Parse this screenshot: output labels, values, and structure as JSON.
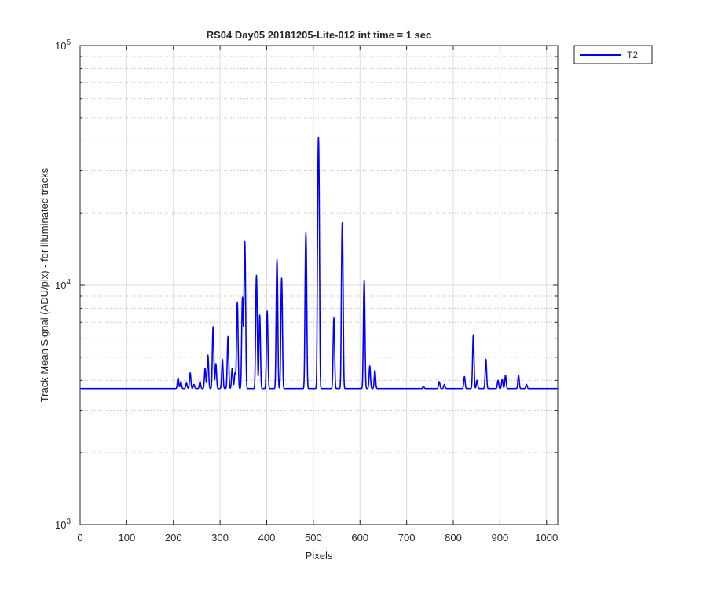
{
  "chart_data": {
    "type": "line",
    "title": "RS04 Day05 20181205-Lite-012 int time = 1 sec",
    "xlabel": "Pixels",
    "ylabel": "Track Mean Signal (ADU/pix) - for illuminated tracks",
    "xlim": [
      0,
      1024
    ],
    "ylim": [
      1000,
      100000
    ],
    "yscale": "log",
    "grid": true,
    "minor_grid_y": true,
    "legend_position": "outside-top-right",
    "x_ticks": [
      0,
      100,
      200,
      300,
      400,
      500,
      600,
      700,
      800,
      900,
      1000
    ],
    "x_tick_labels": [
      "0",
      "100",
      "200",
      "300",
      "400",
      "500",
      "600",
      "700",
      "800",
      "900",
      "1000"
    ],
    "y_ticks": [
      1000,
      10000,
      100000
    ],
    "y_tick_labels": [
      {
        "base": "10",
        "exp": "3"
      },
      {
        "base": "10",
        "exp": "4"
      },
      {
        "base": "10",
        "exp": "5"
      }
    ],
    "baseline": 3700,
    "series": [
      {
        "name": "T2",
        "color": "#0000ff",
        "peaks": [
          {
            "x": 210,
            "y": 4100
          },
          {
            "x": 216,
            "y": 3950
          },
          {
            "x": 228,
            "y": 3900
          },
          {
            "x": 236,
            "y": 4300
          },
          {
            "x": 244,
            "y": 3850
          },
          {
            "x": 257,
            "y": 3950
          },
          {
            "x": 268,
            "y": 4500
          },
          {
            "x": 274,
            "y": 5100
          },
          {
            "x": 285,
            "y": 6700
          },
          {
            "x": 291,
            "y": 4700
          },
          {
            "x": 305,
            "y": 4900
          },
          {
            "x": 317,
            "y": 6100
          },
          {
            "x": 326,
            "y": 4500
          },
          {
            "x": 332,
            "y": 4300
          },
          {
            "x": 337,
            "y": 8500
          },
          {
            "x": 348,
            "y": 8900
          },
          {
            "x": 353,
            "y": 15200
          },
          {
            "x": 378,
            "y": 11000
          },
          {
            "x": 385,
            "y": 7500
          },
          {
            "x": 401,
            "y": 7800
          },
          {
            "x": 422,
            "y": 12800
          },
          {
            "x": 432,
            "y": 10700
          },
          {
            "x": 484,
            "y": 16500
          },
          {
            "x": 511,
            "y": 41500
          },
          {
            "x": 544,
            "y": 7300
          },
          {
            "x": 562,
            "y": 18200
          },
          {
            "x": 609,
            "y": 10500
          },
          {
            "x": 621,
            "y": 4600
          },
          {
            "x": 632,
            "y": 4400
          },
          {
            "x": 736,
            "y": 3780
          },
          {
            "x": 770,
            "y": 3950
          },
          {
            "x": 781,
            "y": 3850
          },
          {
            "x": 824,
            "y": 4150
          },
          {
            "x": 843,
            "y": 6200
          },
          {
            "x": 851,
            "y": 4000
          },
          {
            "x": 870,
            "y": 4900
          },
          {
            "x": 896,
            "y": 4000
          },
          {
            "x": 905,
            "y": 4050
          },
          {
            "x": 912,
            "y": 4200
          },
          {
            "x": 940,
            "y": 4200
          },
          {
            "x": 957,
            "y": 3850
          }
        ]
      }
    ]
  }
}
